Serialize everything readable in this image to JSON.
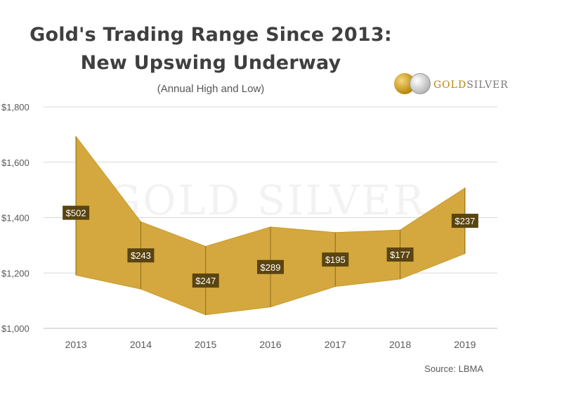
{
  "title": {
    "line1": "Gold's Trading Range Since 2013:",
    "line2": "New Upswing Underway",
    "subtitle": "(Annual High and Low)"
  },
  "logo": {
    "gold_text": "GOLD",
    "silver_text": "SILVER",
    "watermark": "GOLD SILVER"
  },
  "source": "Source: LBMA",
  "colors": {
    "band_fill": "#d4a83e",
    "band_stroke": "#c99a2b",
    "label_bg": "#5a4410",
    "grid": "#d9d9d9",
    "axis_text": "#595959"
  },
  "chart_data": {
    "type": "area",
    "categories": [
      "2013",
      "2014",
      "2015",
      "2016",
      "2017",
      "2018",
      "2019"
    ],
    "series": [
      {
        "values": [
          1693,
          1385,
          1296,
          1366,
          1346,
          1355,
          1507
        ]
      },
      {
        "values": [
          1192,
          1142,
          1049,
          1077,
          1151,
          1178,
          1270
        ]
      }
    ],
    "range_labels": [
      "$502",
      "$243",
      "$247",
      "$289",
      "$195",
      "$177",
      "$237"
    ],
    "ylim": [
      1000,
      1800
    ],
    "yticks": [
      1000,
      1200,
      1400,
      1600,
      1800
    ],
    "ytick_labels": [
      "$1,000",
      "$1,200",
      "$1,400",
      "$1,600",
      "$1,800"
    ],
    "grid": true,
    "legend": "none"
  }
}
